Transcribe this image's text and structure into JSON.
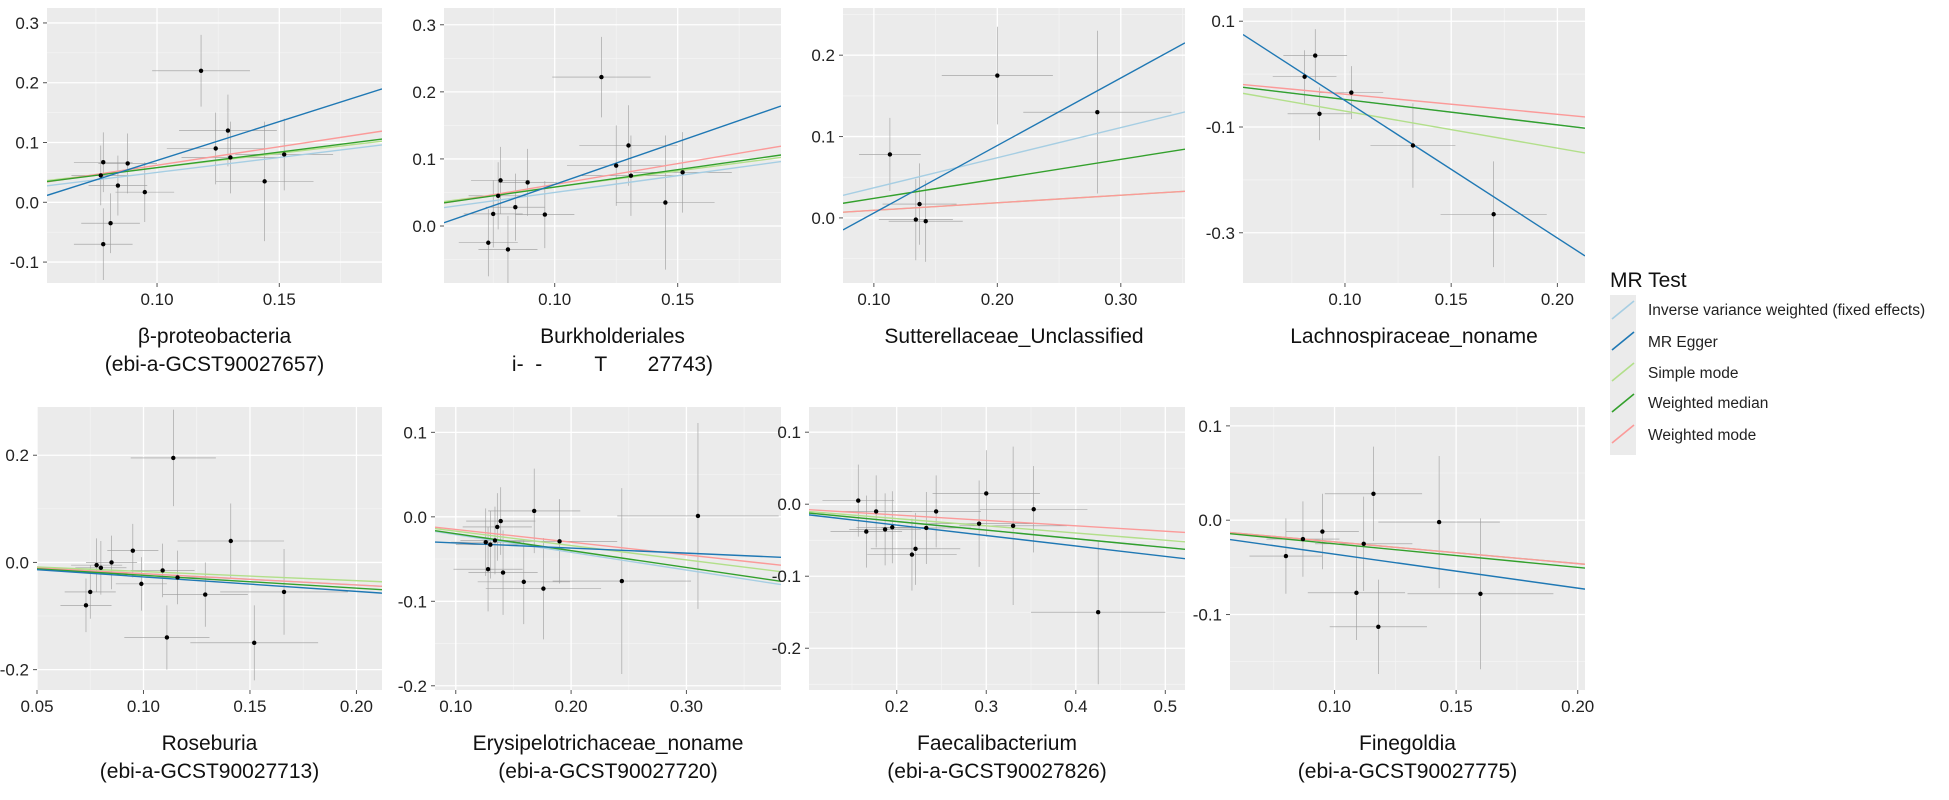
{
  "legend": {
    "title": "MR Test",
    "items": [
      {
        "key": "ivw",
        "label": "Inverse variance weighted (fixed effects)",
        "color": "#a6cee3"
      },
      {
        "key": "egger",
        "label": "MR Egger",
        "color": "#1f78b4"
      },
      {
        "key": "simple",
        "label": "Simple mode",
        "color": "#b2df8a"
      },
      {
        "key": "wmedian",
        "label": "Weighted median",
        "color": "#33a02c"
      },
      {
        "key": "wmode",
        "label": "Weighted mode",
        "color": "#fb9a99"
      }
    ]
  },
  "chart_data": [
    {
      "type": "scatter",
      "title": "β-proteobacteria",
      "subtitle": "(ebi-a-GCST90027657)",
      "xlim": [
        0.055,
        0.192
      ],
      "ylim": [
        -0.135,
        0.325
      ],
      "xticks": [
        {
          "v": 0.1,
          "label": "0.10"
        },
        {
          "v": 0.15,
          "label": "0.15"
        }
      ],
      "yticks": [
        {
          "v": -0.1,
          "label": "-0.1"
        },
        {
          "v": 0.0,
          "label": "0.0"
        },
        {
          "v": 0.1,
          "label": "0.1"
        },
        {
          "v": 0.2,
          "label": "0.2"
        },
        {
          "v": 0.3,
          "label": "0.3"
        }
      ],
      "points": [
        {
          "x": 0.077,
          "y": 0.045,
          "xerr": 0.012,
          "yerr": 0.05
        },
        {
          "x": 0.078,
          "y": 0.067,
          "xerr": 0.012,
          "yerr": 0.05
        },
        {
          "x": 0.078,
          "y": -0.07,
          "xerr": 0.012,
          "yerr": 0.06
        },
        {
          "x": 0.081,
          "y": -0.035,
          "xerr": 0.012,
          "yerr": 0.05
        },
        {
          "x": 0.084,
          "y": 0.028,
          "xerr": 0.012,
          "yerr": 0.05
        },
        {
          "x": 0.088,
          "y": 0.065,
          "xerr": 0.012,
          "yerr": 0.05
        },
        {
          "x": 0.095,
          "y": 0.017,
          "xerr": 0.012,
          "yerr": 0.05
        },
        {
          "x": 0.118,
          "y": 0.22,
          "xerr": 0.02,
          "yerr": 0.06
        },
        {
          "x": 0.124,
          "y": 0.09,
          "xerr": 0.02,
          "yerr": 0.06
        },
        {
          "x": 0.129,
          "y": 0.12,
          "xerr": 0.02,
          "yerr": 0.06
        },
        {
          "x": 0.13,
          "y": 0.075,
          "xerr": 0.02,
          "yerr": 0.06
        },
        {
          "x": 0.144,
          "y": 0.035,
          "xerr": 0.02,
          "yerr": 0.1
        },
        {
          "x": 0.152,
          "y": 0.08,
          "xerr": 0.02,
          "yerr": 0.06
        }
      ],
      "lines": {
        "ivw": [
          0.0,
          0.5
        ],
        "egger": [
          -0.06,
          1.3
        ],
        "simple": [
          0.01,
          0.48
        ],
        "wmedian": [
          0.006,
          0.52
        ],
        "wmode": [
          0.0,
          0.62
        ]
      }
    },
    {
      "type": "scatter",
      "title": "Burkholderiales",
      "subtitle": "i-  -         T       27743)",
      "xlim": [
        0.055,
        0.192
      ],
      "ylim": [
        -0.085,
        0.325
      ],
      "xticks": [
        {
          "v": 0.1,
          "label": "0.10"
        },
        {
          "v": 0.15,
          "label": "0.15"
        }
      ],
      "yticks": [
        {
          "v": 0.0,
          "label": "0.0"
        },
        {
          "v": 0.1,
          "label": "0.1"
        },
        {
          "v": 0.2,
          "label": "0.2"
        },
        {
          "v": 0.3,
          "label": "0.3"
        }
      ],
      "points": [
        {
          "x": 0.073,
          "y": -0.025,
          "xerr": 0.012,
          "yerr": 0.05
        },
        {
          "x": 0.075,
          "y": 0.018,
          "xerr": 0.012,
          "yerr": 0.05
        },
        {
          "x": 0.077,
          "y": 0.045,
          "xerr": 0.012,
          "yerr": 0.05
        },
        {
          "x": 0.078,
          "y": 0.068,
          "xerr": 0.012,
          "yerr": 0.05
        },
        {
          "x": 0.081,
          "y": -0.035,
          "xerr": 0.012,
          "yerr": 0.05
        },
        {
          "x": 0.084,
          "y": 0.028,
          "xerr": 0.012,
          "yerr": 0.05
        },
        {
          "x": 0.089,
          "y": 0.065,
          "xerr": 0.012,
          "yerr": 0.05
        },
        {
          "x": 0.096,
          "y": 0.017,
          "xerr": 0.012,
          "yerr": 0.05
        },
        {
          "x": 0.119,
          "y": 0.222,
          "xerr": 0.02,
          "yerr": 0.06
        },
        {
          "x": 0.125,
          "y": 0.09,
          "xerr": 0.02,
          "yerr": 0.06
        },
        {
          "x": 0.13,
          "y": 0.12,
          "xerr": 0.02,
          "yerr": 0.06
        },
        {
          "x": 0.131,
          "y": 0.075,
          "xerr": 0.02,
          "yerr": 0.06
        },
        {
          "x": 0.145,
          "y": 0.035,
          "xerr": 0.02,
          "yerr": 0.1
        },
        {
          "x": 0.152,
          "y": 0.08,
          "xerr": 0.02,
          "yerr": 0.06
        }
      ],
      "lines": {
        "ivw": [
          0.0,
          0.5
        ],
        "egger": [
          -0.065,
          1.27
        ],
        "simple": [
          0.01,
          0.48
        ],
        "wmedian": [
          0.006,
          0.52
        ],
        "wmode": [
          0.0,
          0.62
        ]
      }
    },
    {
      "type": "scatter",
      "title": "Sutterellaceae_Unclassified",
      "subtitle": "",
      "xlim": [
        0.075,
        0.352
      ],
      "ylim": [
        -0.08,
        0.258
      ],
      "xticks": [
        {
          "v": 0.1,
          "label": "0.10"
        },
        {
          "v": 0.2,
          "label": "0.20"
        },
        {
          "v": 0.3,
          "label": "0.30"
        }
      ],
      "yticks": [
        {
          "v": 0.0,
          "label": "0.0"
        },
        {
          "v": 0.1,
          "label": "0.1"
        },
        {
          "v": 0.2,
          "label": "0.2"
        }
      ],
      "points": [
        {
          "x": 0.113,
          "y": 0.078,
          "xerr": 0.025,
          "yerr": 0.045
        },
        {
          "x": 0.134,
          "y": -0.002,
          "xerr": 0.03,
          "yerr": 0.05
        },
        {
          "x": 0.137,
          "y": 0.017,
          "xerr": 0.03,
          "yerr": 0.05
        },
        {
          "x": 0.142,
          "y": -0.004,
          "xerr": 0.03,
          "yerr": 0.05
        },
        {
          "x": 0.2,
          "y": 0.175,
          "xerr": 0.045,
          "yerr": 0.06
        },
        {
          "x": 0.281,
          "y": 0.13,
          "xerr": 0.06,
          "yerr": 0.1
        }
      ],
      "lines": {
        "ivw": [
          0.0,
          0.37
        ],
        "egger": [
          -0.077,
          0.83
        ],
        "simple": [
          0.0,
          0.093
        ],
        "wmedian": [
          0.0,
          0.24
        ],
        "wmode": [
          0.0,
          0.093
        ]
      }
    },
    {
      "type": "scatter",
      "title": "Lachnospiraceae_noname",
      "subtitle": "",
      "xlim": [
        0.052,
        0.213
      ],
      "ylim": [
        -0.395,
        0.125
      ],
      "xticks": [
        {
          "v": 0.1,
          "label": "0.10"
        },
        {
          "v": 0.15,
          "label": "0.15"
        },
        {
          "v": 0.2,
          "label": "0.20"
        }
      ],
      "yticks": [
        {
          "v": 0.1,
          "label": "0.1"
        },
        {
          "v": -0.1,
          "label": "-0.1"
        },
        {
          "v": -0.3,
          "label": "-0.3"
        }
      ],
      "points": [
        {
          "x": 0.081,
          "y": -0.005,
          "xerr": 0.015,
          "yerr": 0.05
        },
        {
          "x": 0.086,
          "y": 0.035,
          "xerr": 0.015,
          "yerr": 0.05
        },
        {
          "x": 0.088,
          "y": -0.075,
          "xerr": 0.015,
          "yerr": 0.05
        },
        {
          "x": 0.103,
          "y": -0.035,
          "xerr": 0.015,
          "yerr": 0.05
        },
        {
          "x": 0.132,
          "y": -0.135,
          "xerr": 0.02,
          "yerr": 0.08
        },
        {
          "x": 0.17,
          "y": -0.265,
          "xerr": 0.025,
          "yerr": 0.1
        }
      ],
      "lines": {
        "ivw": [
          0.0,
          -0.48
        ],
        "egger": [
          0.21,
          -2.6
        ],
        "simple": [
          0.0,
          -0.7
        ],
        "wmedian": [
          0.0,
          -0.48
        ],
        "wmode": [
          0.0,
          -0.38
        ]
      }
    },
    {
      "type": "scatter",
      "title": "Roseburia",
      "subtitle": "(ebi-a-GCST90027713)",
      "xlim": [
        0.05,
        0.212
      ],
      "ylim": [
        -0.238,
        0.29
      ],
      "xticks": [
        {
          "v": 0.05,
          "label": "0.05"
        },
        {
          "v": 0.1,
          "label": "0.10"
        },
        {
          "v": 0.15,
          "label": "0.15"
        },
        {
          "v": 0.2,
          "label": "0.20"
        }
      ],
      "yticks": [
        {
          "v": -0.2,
          "label": "-0.2"
        },
        {
          "v": 0.0,
          "label": "0.0"
        },
        {
          "v": 0.2,
          "label": "0.2"
        }
      ],
      "points": [
        {
          "x": 0.073,
          "y": -0.08,
          "xerr": 0.012,
          "yerr": 0.05
        },
        {
          "x": 0.075,
          "y": -0.055,
          "xerr": 0.012,
          "yerr": 0.05
        },
        {
          "x": 0.078,
          "y": -0.005,
          "xerr": 0.012,
          "yerr": 0.05
        },
        {
          "x": 0.08,
          "y": -0.01,
          "xerr": 0.012,
          "yerr": 0.05
        },
        {
          "x": 0.085,
          "y": 0.0,
          "xerr": 0.012,
          "yerr": 0.05
        },
        {
          "x": 0.095,
          "y": 0.022,
          "xerr": 0.012,
          "yerr": 0.05
        },
        {
          "x": 0.099,
          "y": -0.04,
          "xerr": 0.012,
          "yerr": 0.05
        },
        {
          "x": 0.109,
          "y": -0.015,
          "xerr": 0.015,
          "yerr": 0.05
        },
        {
          "x": 0.111,
          "y": -0.14,
          "xerr": 0.02,
          "yerr": 0.06
        },
        {
          "x": 0.114,
          "y": 0.195,
          "xerr": 0.02,
          "yerr": 0.09
        },
        {
          "x": 0.116,
          "y": -0.028,
          "xerr": 0.015,
          "yerr": 0.05
        },
        {
          "x": 0.129,
          "y": -0.06,
          "xerr": 0.02,
          "yerr": 0.06
        },
        {
          "x": 0.141,
          "y": 0.04,
          "xerr": 0.025,
          "yerr": 0.07
        },
        {
          "x": 0.152,
          "y": -0.15,
          "xerr": 0.03,
          "yerr": 0.07
        },
        {
          "x": 0.166,
          "y": -0.055,
          "xerr": 0.03,
          "yerr": 0.08
        }
      ],
      "lines": {
        "ivw": [
          0.0,
          -0.21
        ],
        "egger": [
          0.0,
          -0.27
        ],
        "simple": [
          0.0,
          -0.17
        ],
        "wmedian": [
          0.0,
          -0.24
        ],
        "wmode": [
          0.0,
          -0.21
        ]
      }
    },
    {
      "type": "scatter",
      "title": "Erysipelotrichaceae_noname",
      "subtitle": "(ebi-a-GCST90027720)",
      "xlim": [
        0.082,
        0.382
      ],
      "ylim": [
        -0.205,
        0.13
      ],
      "xticks": [
        {
          "v": 0.1,
          "label": "0.10"
        },
        {
          "v": 0.2,
          "label": "0.20"
        },
        {
          "v": 0.3,
          "label": "0.30"
        }
      ],
      "yticks": [
        {
          "v": -0.2,
          "label": "-0.2"
        },
        {
          "v": -0.1,
          "label": "-0.1"
        },
        {
          "v": 0.0,
          "label": "0.0"
        },
        {
          "v": 0.1,
          "label": "0.1"
        }
      ],
      "points": [
        {
          "x": 0.126,
          "y": -0.03,
          "xerr": 0.03,
          "yerr": 0.04
        },
        {
          "x": 0.128,
          "y": -0.062,
          "xerr": 0.03,
          "yerr": 0.05
        },
        {
          "x": 0.13,
          "y": -0.033,
          "xerr": 0.03,
          "yerr": 0.04
        },
        {
          "x": 0.134,
          "y": -0.028,
          "xerr": 0.03,
          "yerr": 0.04
        },
        {
          "x": 0.136,
          "y": -0.012,
          "xerr": 0.03,
          "yerr": 0.04
        },
        {
          "x": 0.139,
          "y": -0.005,
          "xerr": 0.03,
          "yerr": 0.04
        },
        {
          "x": 0.141,
          "y": -0.066,
          "xerr": 0.03,
          "yerr": 0.05
        },
        {
          "x": 0.159,
          "y": -0.077,
          "xerr": 0.04,
          "yerr": 0.05
        },
        {
          "x": 0.168,
          "y": 0.007,
          "xerr": 0.04,
          "yerr": 0.05
        },
        {
          "x": 0.176,
          "y": -0.085,
          "xerr": 0.05,
          "yerr": 0.06
        },
        {
          "x": 0.19,
          "y": -0.029,
          "xerr": 0.05,
          "yerr": 0.05
        },
        {
          "x": 0.244,
          "y": -0.076,
          "xerr": 0.06,
          "yerr": 0.11
        },
        {
          "x": 0.31,
          "y": 0.001,
          "xerr": 0.07,
          "yerr": 0.11
        }
      ],
      "lines": {
        "ivw": [
          0.0,
          -0.21
        ],
        "egger": [
          -0.025,
          -0.06
        ],
        "simple": [
          0.0,
          -0.17
        ],
        "wmedian": [
          0.0,
          -0.2
        ],
        "wmode": [
          0.0,
          -0.15
        ]
      }
    },
    {
      "type": "scatter",
      "title": "Faecalibacterium",
      "subtitle": "(ebi-a-GCST90027826)",
      "xlim": [
        0.102,
        0.522
      ],
      "ylim": [
        -0.258,
        0.135
      ],
      "xticks": [
        {
          "v": 0.2,
          "label": "0.2"
        },
        {
          "v": 0.3,
          "label": "0.3"
        },
        {
          "v": 0.4,
          "label": "0.4"
        },
        {
          "v": 0.5,
          "label": "0.5"
        }
      ],
      "yticks": [
        {
          "v": -0.2,
          "label": "-0.2"
        },
        {
          "v": -0.1,
          "label": "-0.1"
        },
        {
          "v": 0.0,
          "label": "0.0"
        },
        {
          "v": 0.1,
          "label": "0.1"
        }
      ],
      "points": [
        {
          "x": 0.157,
          "y": 0.005,
          "xerr": 0.04,
          "yerr": 0.05
        },
        {
          "x": 0.166,
          "y": -0.038,
          "xerr": 0.04,
          "yerr": 0.05
        },
        {
          "x": 0.177,
          "y": -0.01,
          "xerr": 0.04,
          "yerr": 0.05
        },
        {
          "x": 0.187,
          "y": -0.035,
          "xerr": 0.04,
          "yerr": 0.05
        },
        {
          "x": 0.195,
          "y": -0.032,
          "xerr": 0.04,
          "yerr": 0.05
        },
        {
          "x": 0.217,
          "y": -0.07,
          "xerr": 0.05,
          "yerr": 0.05
        },
        {
          "x": 0.221,
          "y": -0.062,
          "xerr": 0.05,
          "yerr": 0.05
        },
        {
          "x": 0.233,
          "y": -0.033,
          "xerr": 0.05,
          "yerr": 0.05
        },
        {
          "x": 0.244,
          "y": -0.01,
          "xerr": 0.05,
          "yerr": 0.05
        },
        {
          "x": 0.292,
          "y": -0.027,
          "xerr": 0.06,
          "yerr": 0.06
        },
        {
          "x": 0.3,
          "y": 0.015,
          "xerr": 0.06,
          "yerr": 0.06
        },
        {
          "x": 0.33,
          "y": -0.03,
          "xerr": 0.06,
          "yerr": 0.11
        },
        {
          "x": 0.353,
          "y": -0.007,
          "xerr": 0.06,
          "yerr": 0.06
        },
        {
          "x": 0.425,
          "y": -0.15,
          "xerr": 0.075,
          "yerr": 0.1
        }
      ],
      "lines": {
        "ivw": [
          0.0,
          -0.12
        ],
        "egger": [
          0.0,
          -0.145
        ],
        "simple": [
          0.0,
          -0.1
        ],
        "wmedian": [
          0.0,
          -0.12
        ],
        "wmode": [
          0.0,
          -0.075
        ]
      }
    },
    {
      "type": "scatter",
      "title": "Finegoldia",
      "subtitle": "(ebi-a-GCST90027775)",
      "xlim": [
        0.057,
        0.203
      ],
      "ylim": [
        -0.18,
        0.12
      ],
      "xticks": [
        {
          "v": 0.1,
          "label": "0.10"
        },
        {
          "v": 0.15,
          "label": "0.15"
        },
        {
          "v": 0.2,
          "label": "0.20"
        }
      ],
      "yticks": [
        {
          "v": -0.1,
          "label": "-0.1"
        },
        {
          "v": 0.0,
          "label": "0.0"
        },
        {
          "v": 0.1,
          "label": "0.1"
        }
      ],
      "points": [
        {
          "x": 0.08,
          "y": -0.038,
          "xerr": 0.015,
          "yerr": 0.04
        },
        {
          "x": 0.087,
          "y": -0.02,
          "xerr": 0.015,
          "yerr": 0.04
        },
        {
          "x": 0.095,
          "y": -0.012,
          "xerr": 0.015,
          "yerr": 0.04
        },
        {
          "x": 0.109,
          "y": -0.077,
          "xerr": 0.02,
          "yerr": 0.05
        },
        {
          "x": 0.112,
          "y": -0.025,
          "xerr": 0.02,
          "yerr": 0.05
        },
        {
          "x": 0.116,
          "y": 0.028,
          "xerr": 0.02,
          "yerr": 0.05
        },
        {
          "x": 0.118,
          "y": -0.113,
          "xerr": 0.02,
          "yerr": 0.05
        },
        {
          "x": 0.143,
          "y": -0.002,
          "xerr": 0.025,
          "yerr": 0.07
        },
        {
          "x": 0.16,
          "y": -0.078,
          "xerr": 0.03,
          "yerr": 0.08
        }
      ],
      "lines": {
        "ivw": [
          0.0,
          -0.23
        ],
        "egger": [
          0.0,
          -0.36
        ],
        "simple": [
          0.0,
          -0.23
        ],
        "wmedian": [
          0.0,
          -0.25
        ],
        "wmode": [
          0.0,
          -0.23
        ]
      }
    }
  ]
}
